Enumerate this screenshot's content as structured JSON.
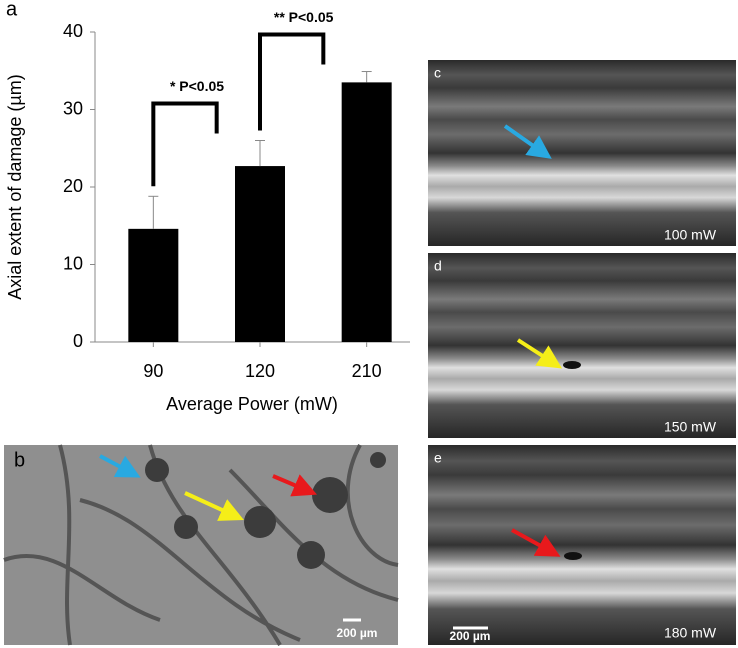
{
  "chart_data": {
    "type": "bar",
    "panel_label": "a",
    "x_label": "Average Power (mW)",
    "y_label": "Axial extent of damage (µm)",
    "categories": [
      "90",
      "120",
      "210"
    ],
    "values": [
      14.6,
      22.7,
      33.5
    ],
    "errors": [
      4.2,
      3.3,
      1.4
    ],
    "color": "#000000",
    "ylim": [
      0,
      40
    ],
    "yticks": [
      0,
      10,
      20,
      30,
      40
    ],
    "annotations": [
      "* P<0.05",
      "** P<0.05"
    ]
  },
  "panels": {
    "b": {
      "label": "b",
      "scale_bar": "200 µm"
    },
    "c": {
      "label": "c",
      "power": "100 mW"
    },
    "d": {
      "label": "d",
      "power": "150 mW"
    },
    "e": {
      "label": "e",
      "power": "180 mW",
      "scale_bar": "200 µm"
    }
  }
}
